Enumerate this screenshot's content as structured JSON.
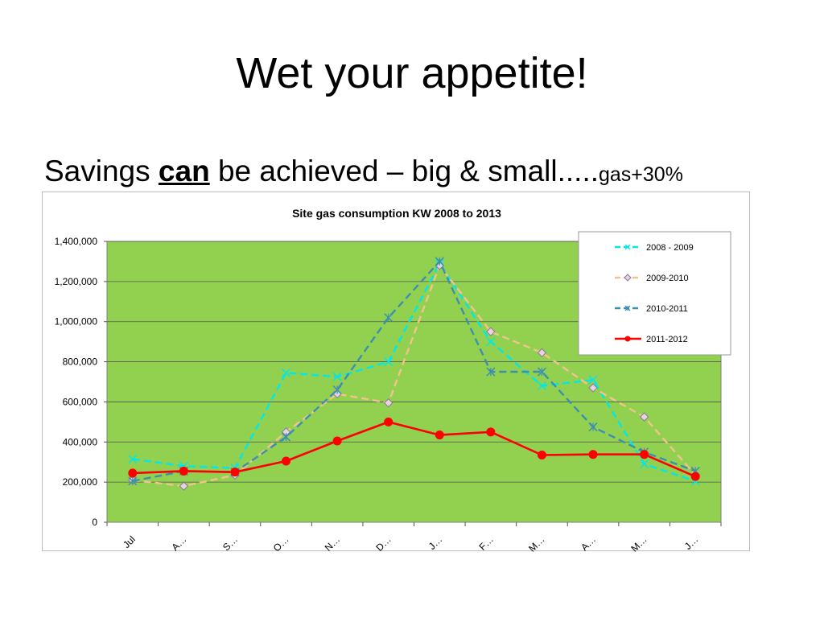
{
  "slide": {
    "title": "Wet your appetite!",
    "subtitle": {
      "part1": "Savings ",
      "emphasis": "can",
      "part2": " be achieved – big & small.....",
      "small": "gas+30%"
    }
  },
  "colors": {
    "plot_bg": "#92d050",
    "series": [
      "#00e8e8",
      "#f2c38c",
      "#3d8fb0",
      "#ff0000"
    ]
  },
  "chart_data": {
    "type": "line",
    "title": "Site gas consumption KW 2008 to 2013",
    "xlabel": "",
    "ylabel": "",
    "categories": [
      "Jul",
      "A…",
      "S…",
      "O…",
      "N…",
      "D…",
      "J…",
      "F…",
      "M…",
      "A…",
      "M…",
      "J…"
    ],
    "ylim": [
      0,
      1400000
    ],
    "yticks": [
      "0",
      "200,000",
      "400,000",
      "600,000",
      "800,000",
      "1,000,000",
      "1,200,000",
      "1,400,000"
    ],
    "grid": true,
    "legend_position": "top-right",
    "series": [
      {
        "name": "2008 - 2009",
        "values": [
          315000,
          280000,
          270000,
          745000,
          725000,
          800000,
          1290000,
          900000,
          680000,
          710000,
          290000,
          205000
        ],
        "style": "dashed",
        "marker": "x"
      },
      {
        "name": "2009-2010",
        "values": [
          210000,
          180000,
          235000,
          450000,
          640000,
          595000,
          1280000,
          950000,
          845000,
          670000,
          525000,
          235000
        ],
        "style": "dashed",
        "marker": "diamond"
      },
      {
        "name": "2010-2011",
        "values": [
          205000,
          255000,
          250000,
          425000,
          660000,
          1020000,
          1300000,
          750000,
          750000,
          475000,
          350000,
          255000
        ],
        "style": "dashed",
        "marker": "star"
      },
      {
        "name": "2011-2012",
        "values": [
          245000,
          255000,
          250000,
          305000,
          405000,
          500000,
          435000,
          450000,
          335000,
          338000,
          338000,
          228000
        ],
        "style": "solid",
        "marker": "circle"
      }
    ]
  }
}
